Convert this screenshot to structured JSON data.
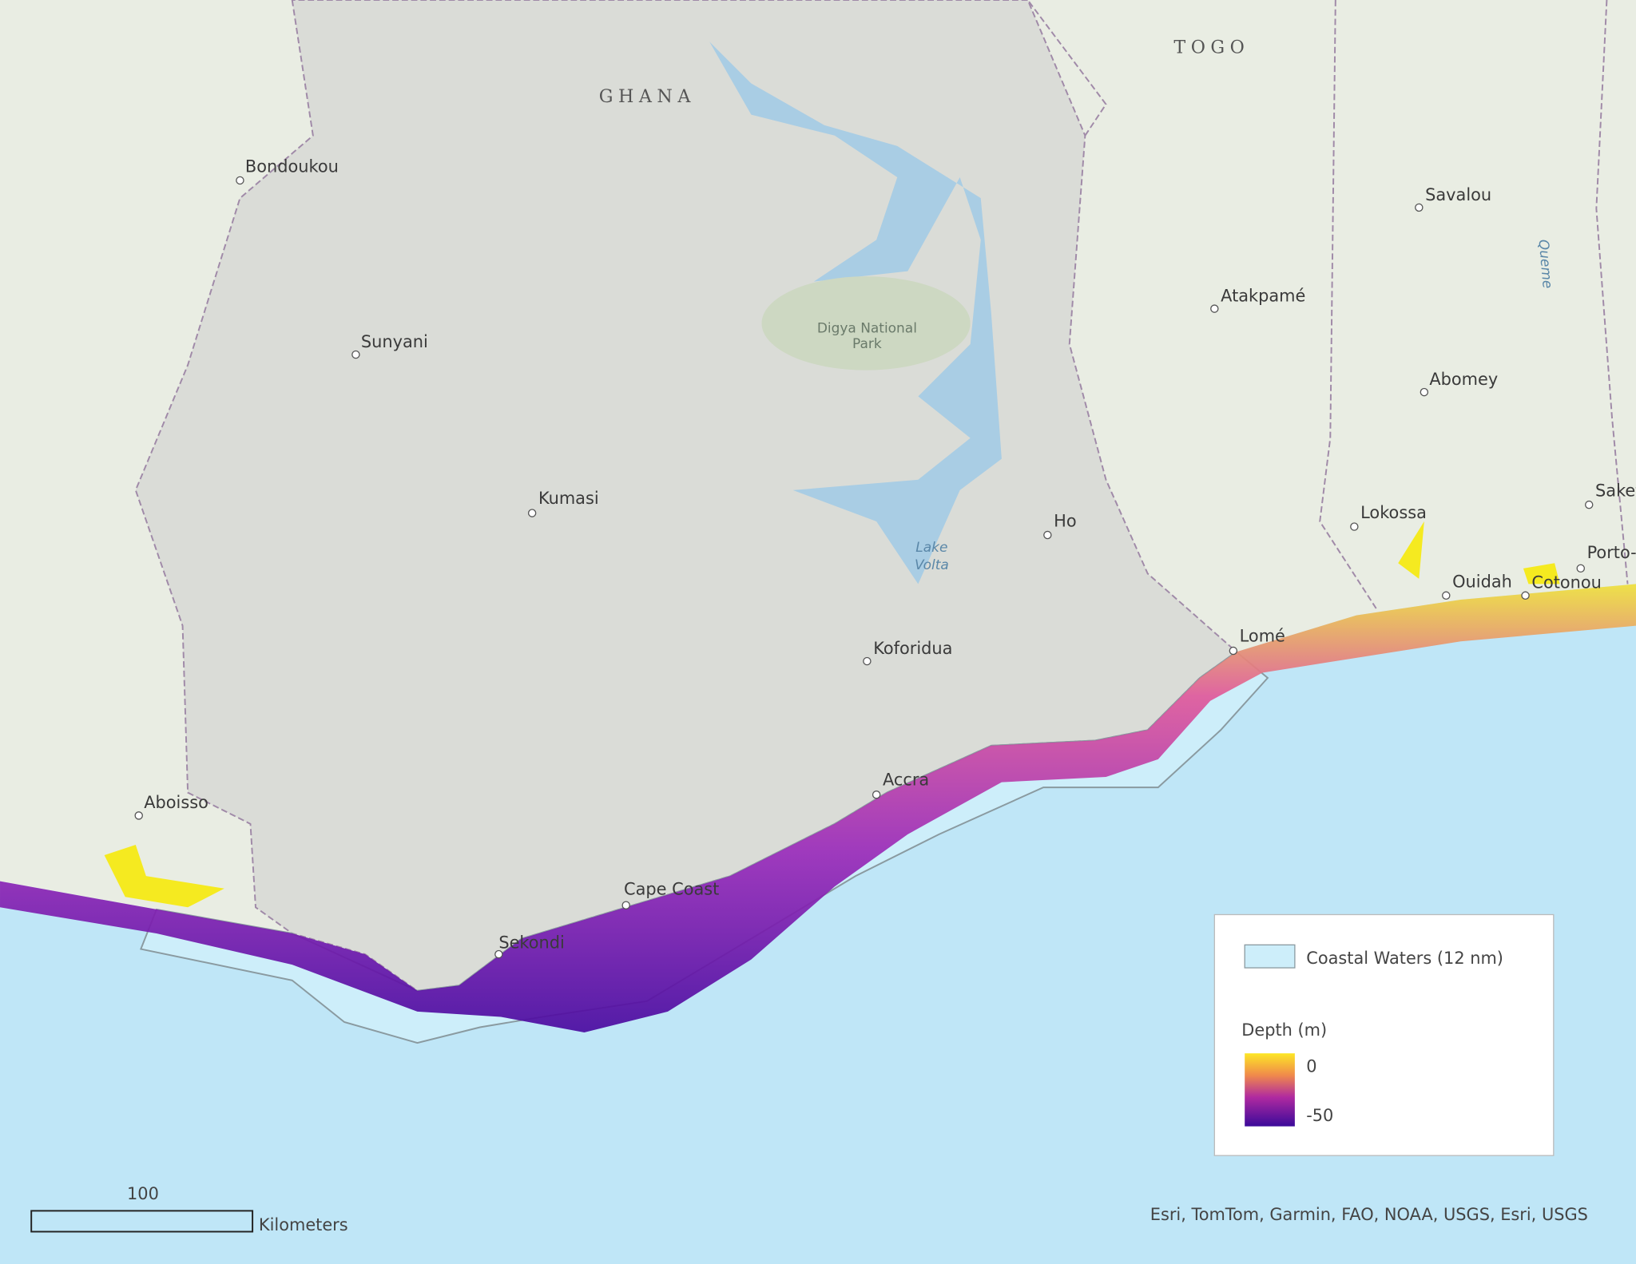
{
  "map": {
    "countries": [
      "GHANA",
      "TOGO"
    ],
    "places": [
      "Bondoukou",
      "Sunyani",
      "Kumasi",
      "Koforidua",
      "Accra",
      "Ho",
      "Lomé",
      "Atakpamé",
      "Savalou",
      "Abomey",
      "Lokossa",
      "Ouidah",
      "Cotonou",
      "Porto-Novo",
      "Saketé",
      "Aboisso",
      "Cape Coast",
      "Sekondi"
    ],
    "lake": [
      "Lake",
      "Volta"
    ],
    "park": [
      "Digya National",
      "Park"
    ],
    "river": "Queme",
    "legend": {
      "coastal": "Coastal Waters (12 nm)",
      "depth_title": "Depth (m)",
      "depth_max": 0,
      "depth_min": -50
    },
    "scale": {
      "value": 100,
      "unit": "Kilometers"
    },
    "attribution": "Esri, TomTom, Garmin, FAO, NOAA, USGS, Esri, USGS"
  }
}
